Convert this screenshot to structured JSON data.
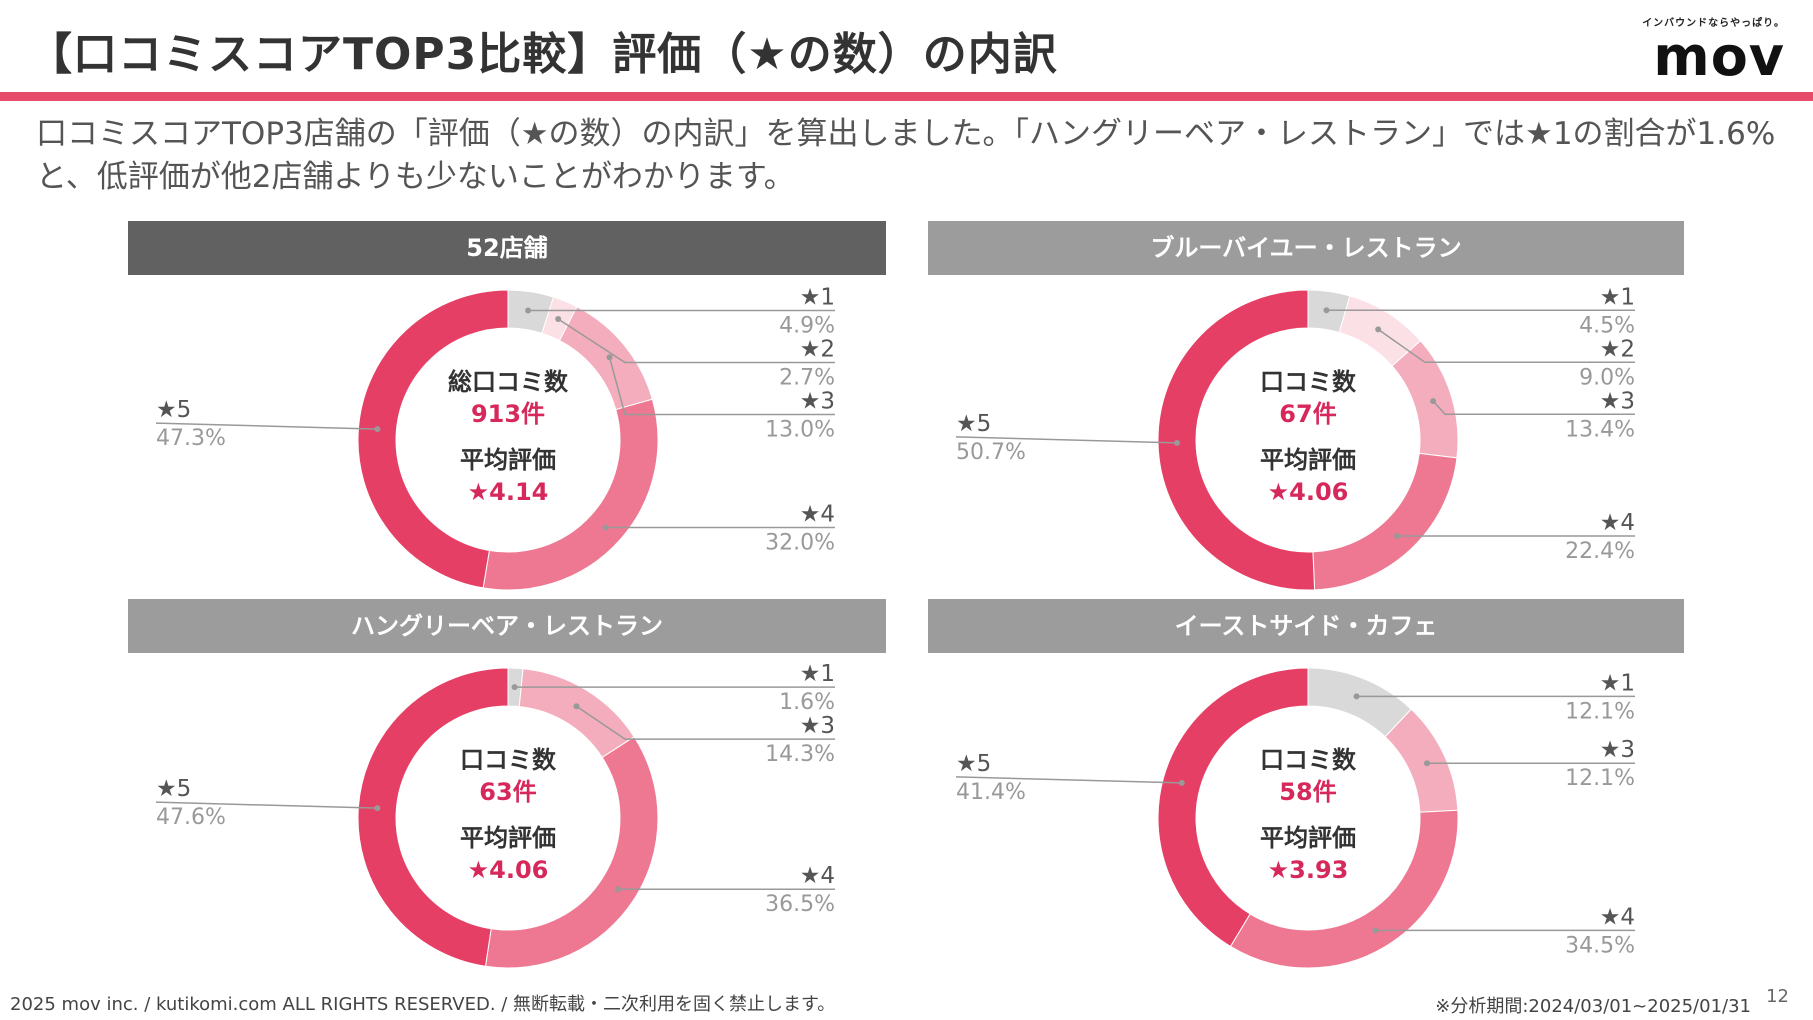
{
  "header": {
    "title": "【口コミスコアTOP3比較】評価（★の数）の内訳",
    "logo_tagline": "インバウンドならやっぱり。",
    "logo_word": "mov"
  },
  "description": "口コミスコアTOP3店舗の「評価（★の数）の内訳」を算出しました。「ハングリーベア・レストラン」では★1の割合が1.6%と、低評価が他2店舗よりも少ないことがわかります。",
  "colors": {
    "star1": "#d9d9d9",
    "star2": "#fbe0e6",
    "star3": "#f4adbd",
    "star4": "#ee7891",
    "star5": "#e63f65",
    "accent": "#d6285a"
  },
  "chart_data": [
    {
      "type": "pie",
      "title": "52店舗",
      "header_style": "dark",
      "center": {
        "count_label": "総口コミ数",
        "count_value": "913件",
        "avg_label": "平均評価",
        "avg_value": "★4.14"
      },
      "slices": [
        {
          "name": "★1",
          "value": 4.9,
          "pct_label": "4.9%"
        },
        {
          "name": "★2",
          "value": 2.7,
          "pct_label": "2.7%"
        },
        {
          "name": "★3",
          "value": 13.0,
          "pct_label": "13.0%"
        },
        {
          "name": "★4",
          "value": 32.0,
          "pct_label": "32.0%"
        },
        {
          "name": "★5",
          "value": 47.3,
          "pct_label": "47.3%"
        }
      ]
    },
    {
      "type": "pie",
      "title": "ブルーバイユー・レストラン",
      "header_style": "light",
      "center": {
        "count_label": "口コミ数",
        "count_value": "67件",
        "avg_label": "平均評価",
        "avg_value": "★4.06"
      },
      "slices": [
        {
          "name": "★1",
          "value": 4.5,
          "pct_label": "4.5%"
        },
        {
          "name": "★2",
          "value": 9.0,
          "pct_label": "9.0%"
        },
        {
          "name": "★3",
          "value": 13.4,
          "pct_label": "13.4%"
        },
        {
          "name": "★4",
          "value": 22.4,
          "pct_label": "22.4%"
        },
        {
          "name": "★5",
          "value": 50.7,
          "pct_label": "50.7%"
        }
      ]
    },
    {
      "type": "pie",
      "title": "ハングリーベア・レストラン",
      "header_style": "light",
      "center": {
        "count_label": "口コミ数",
        "count_value": "63件",
        "avg_label": "平均評価",
        "avg_value": "★4.06"
      },
      "slices": [
        {
          "name": "★1",
          "value": 1.6,
          "pct_label": "1.6%"
        },
        {
          "name": "★3",
          "value": 14.3,
          "pct_label": "14.3%"
        },
        {
          "name": "★4",
          "value": 36.5,
          "pct_label": "36.5%"
        },
        {
          "name": "★5",
          "value": 47.6,
          "pct_label": "47.6%"
        }
      ]
    },
    {
      "type": "pie",
      "title": "イーストサイド・カフェ",
      "header_style": "light",
      "center": {
        "count_label": "口コミ数",
        "count_value": "58件",
        "avg_label": "平均評価",
        "avg_value": "★3.93"
      },
      "slices": [
        {
          "name": "★1",
          "value": 12.1,
          "pct_label": "12.1%"
        },
        {
          "name": "★3",
          "value": 12.1,
          "pct_label": "12.1%"
        },
        {
          "name": "★4",
          "value": 34.5,
          "pct_label": "34.5%"
        },
        {
          "name": "★5",
          "value": 41.4,
          "pct_label": "41.4%"
        }
      ]
    }
  ],
  "footer": {
    "copyright": "2025 mov inc. / kutikomi.com ALL RIGHTS RESERVED. / 無断転載・二次利用を固く禁止します。",
    "period": "※分析期間:2024/03/01~2025/01/31",
    "page_number": "12"
  }
}
